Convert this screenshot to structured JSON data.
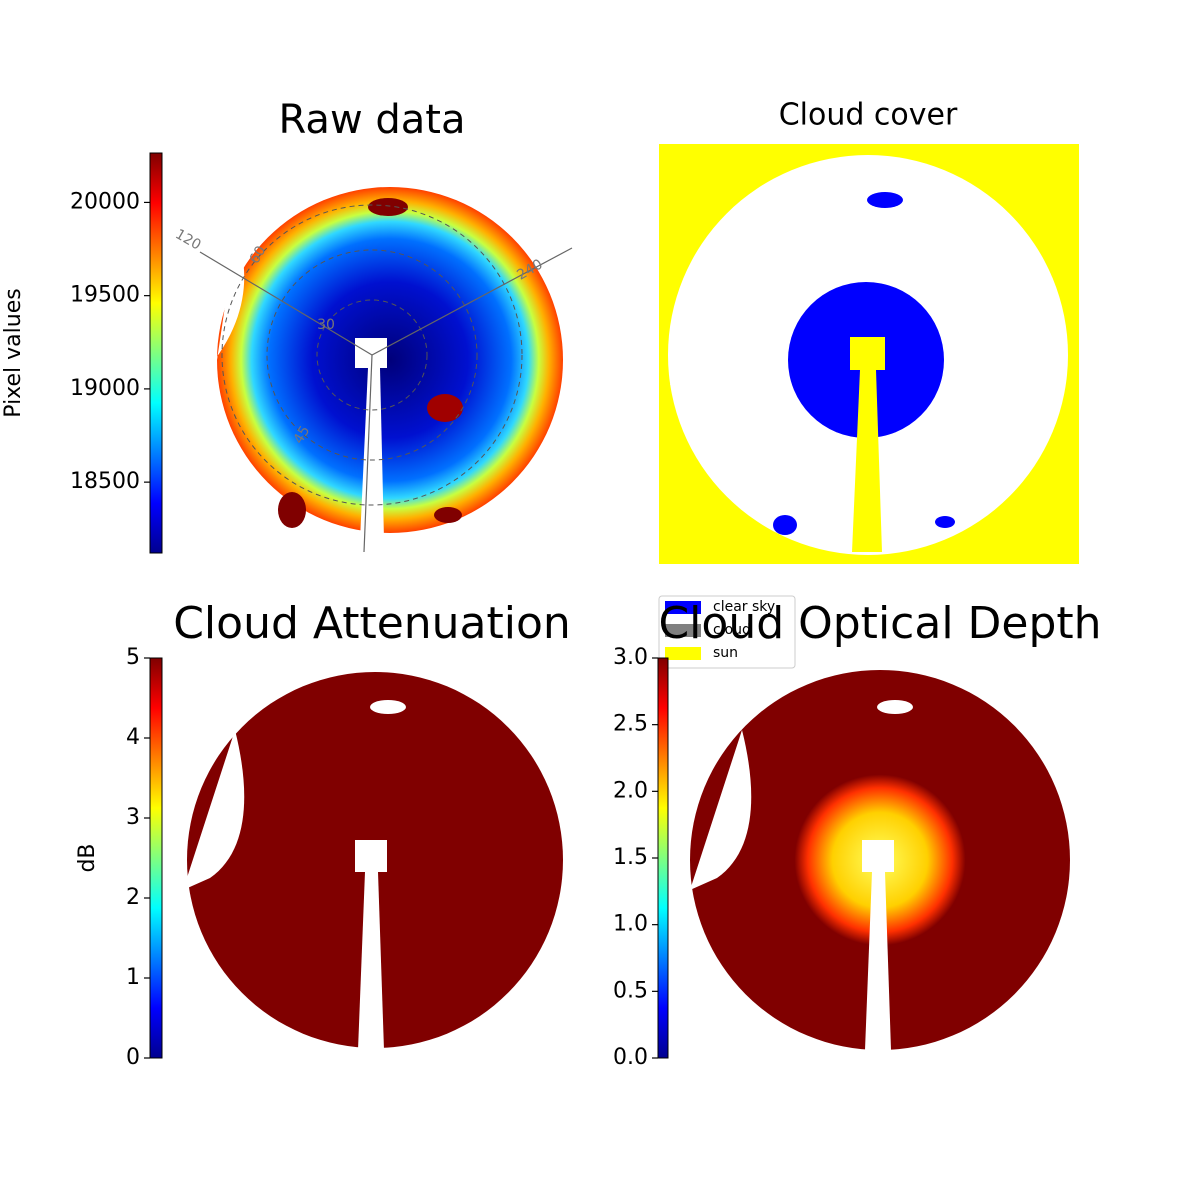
{
  "chart_data": [
    {
      "type": "image",
      "title": "Raw data",
      "colorbar": {
        "label": "Pixel values",
        "colormap": "jet",
        "ylim": [
          18120,
          20265
        ],
        "yticks": [
          18500,
          19000,
          19500,
          20000
        ]
      },
      "polar_labels": [
        "120",
        "60",
        "240",
        "30",
        "45"
      ]
    },
    {
      "type": "image",
      "title": "Cloud cover",
      "series": [
        {
          "name": "clear sky",
          "color": "#0000ff"
        },
        {
          "name": "cloud",
          "color": "#808080"
        },
        {
          "name": "sun",
          "color": "#ffff00"
        }
      ]
    },
    {
      "type": "image",
      "title": "Cloud Attenuation",
      "colorbar": {
        "label": "dB",
        "colormap": "jet",
        "ylim": [
          0,
          5
        ],
        "yticks": [
          0,
          1,
          2,
          3,
          4,
          5
        ]
      }
    },
    {
      "type": "image",
      "title": "Cloud Optical Depth",
      "colorbar": {
        "colormap": "jet",
        "ylim": [
          0,
          3
        ],
        "yticks": [
          {
            "value": 0,
            "label": "0.0"
          },
          0.5,
          {
            "value": 1,
            "label": "1.0"
          },
          1.5,
          {
            "value": 2,
            "label": "2.0"
          },
          2.5,
          {
            "value": 3,
            "label": "3.0"
          }
        ]
      }
    }
  ]
}
